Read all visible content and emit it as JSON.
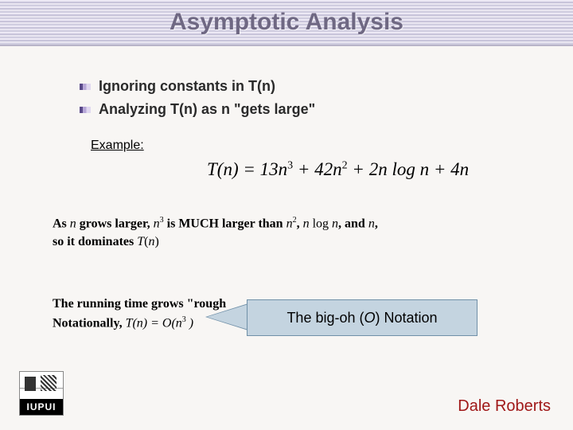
{
  "title": "Asymptotic Analysis",
  "bullets": [
    "Ignoring constants in T(n)",
    "Analyzing T(n) as n \"gets large\""
  ],
  "example_label": "Example:",
  "equation_main_html": "T(n) = 13n<sup>3</sup> + 42n<sup>2</sup> + 2n log n + 4n",
  "grows_html": "<b>As </b><i>n</i><b> grows larger, </b><i>n</i><sup>3</sup><b> is MUCH larger than </b><i>n</i><sup>2</sup><b>, </b><i>n</i> log <i>n</i><b>, and </b><i>n</i><b>,<br>so it dominates </b><i>T</i>(<i>n</i>)",
  "notational_html": "<b>The running time grows \"rough</b><br><b>Notationally, </b><i>T(n) = O(n</i><sup>3</sup><i> )</i>",
  "callout_html": "The big-oh (<i>O</i>) Notation",
  "logo_text": "IUPUI",
  "author": "Dale Roberts",
  "colors": {
    "title_color": "#6f6883",
    "callout_bg": "#c4d4e0",
    "callout_border": "#7090a8",
    "author_color": "#a01818",
    "slide_bg": "#f8f6f4"
  },
  "fonts": {
    "title_size": 30,
    "bullet_size": 18,
    "body_serif_size": 16,
    "callout_size": 18,
    "author_size": 20
  }
}
